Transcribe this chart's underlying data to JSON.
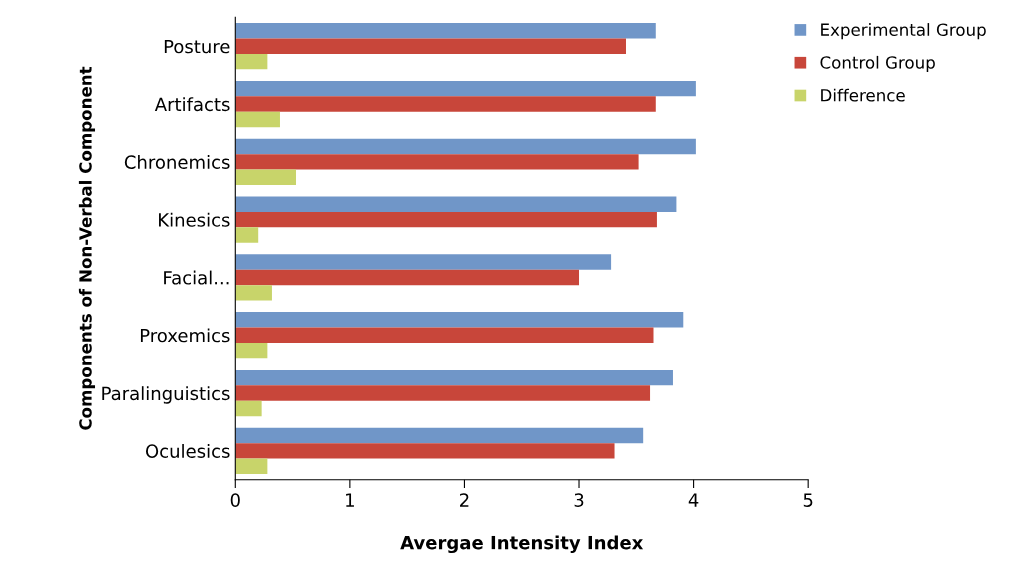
{
  "chart_data": {
    "type": "bar",
    "orientation": "horizontal",
    "categories": [
      "Posture",
      "Artifacts",
      "Chronemics",
      "Kinesics",
      "Facial...",
      "Proxemics",
      "Paralinguistics",
      "Oculesics"
    ],
    "series": [
      {
        "name": "Experimental Group",
        "color": "#7096c8",
        "values": [
          3.67,
          4.02,
          4.02,
          3.85,
          3.28,
          3.91,
          3.82,
          3.56
        ]
      },
      {
        "name": "Control Group",
        "color": "#c8463a",
        "values": [
          3.41,
          3.67,
          3.52,
          3.68,
          3.0,
          3.65,
          3.62,
          3.31
        ]
      },
      {
        "name": "Difference",
        "color": "#c8d46a",
        "values": [
          0.28,
          0.39,
          0.53,
          0.2,
          0.32,
          0.28,
          0.23,
          0.28
        ]
      }
    ],
    "xlabel": "Avergae Intensity Index",
    "ylabel": "Components of Non-Verbal Component",
    "xlim": [
      0,
      5
    ],
    "xticks": [
      0,
      1,
      2,
      3,
      4,
      5
    ],
    "grid": false,
    "legend": "top right"
  }
}
